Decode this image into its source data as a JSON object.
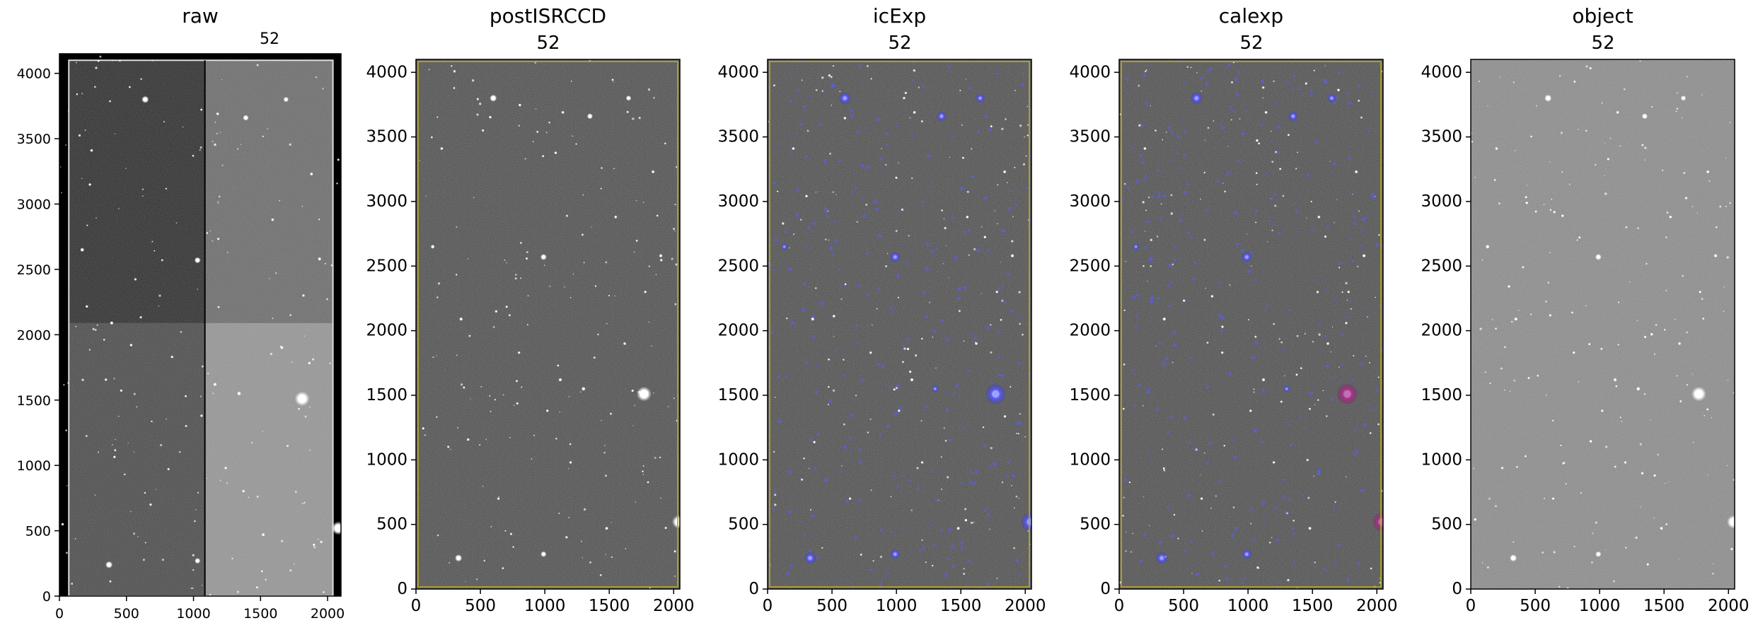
{
  "figure": {
    "panels": [
      {
        "title": "raw",
        "ccd_label": "52",
        "xticks": [
          "0",
          "500",
          "1000",
          "1500",
          "2000"
        ],
        "yticks": [
          "0",
          "500",
          "1000",
          "1500",
          "2000",
          "2500",
          "3000",
          "3500",
          "4000"
        ],
        "xlim": [
          0,
          2100
        ],
        "ylim": [
          0,
          4150
        ],
        "tone": "raw",
        "mask_overlay": "none"
      },
      {
        "title": "postISRCCD",
        "ccd_label": "52",
        "xticks": [
          "0",
          "500",
          "1000",
          "1500",
          "2000"
        ],
        "yticks": [
          "0",
          "500",
          "1000",
          "1500",
          "2000",
          "2500",
          "3000",
          "3500",
          "4000"
        ],
        "xlim": [
          0,
          2048
        ],
        "ylim": [
          0,
          4100
        ],
        "tone": "dark",
        "mask_overlay": "none"
      },
      {
        "title": "icExp",
        "ccd_label": "52",
        "xticks": [
          "0",
          "500",
          "1000",
          "1500",
          "2000"
        ],
        "yticks": [
          "0",
          "500",
          "1000",
          "1500",
          "2000",
          "2500",
          "3000",
          "3500",
          "4000"
        ],
        "xlim": [
          0,
          2048
        ],
        "ylim": [
          0,
          4100
        ],
        "tone": "dark",
        "mask_overlay": "blue"
      },
      {
        "title": "calexp",
        "ccd_label": "52",
        "xticks": [
          "0",
          "500",
          "1000",
          "1500",
          "2000"
        ],
        "yticks": [
          "0",
          "500",
          "1000",
          "1500",
          "2000",
          "2500",
          "3000",
          "3500",
          "4000"
        ],
        "xlim": [
          0,
          2048
        ],
        "ylim": [
          0,
          4100
        ],
        "tone": "dark",
        "mask_overlay": "blue-magenta"
      },
      {
        "title": "object",
        "ccd_label": "52",
        "xticks": [
          "0",
          "500",
          "1000",
          "1500",
          "2000"
        ],
        "yticks": [
          "0",
          "500",
          "1000",
          "1500",
          "2000",
          "2500",
          "3000",
          "3500",
          "4000"
        ],
        "xlim": [
          0,
          2048
        ],
        "ylim": [
          0,
          4100
        ],
        "tone": "light",
        "mask_overlay": "none"
      }
    ],
    "colors": {
      "background": "#ffffff",
      "axis": "#000000",
      "edge_mask": "#b5a62a",
      "detection_mask": "#5a5cff",
      "saturation_mask": "#b0308f"
    }
  }
}
